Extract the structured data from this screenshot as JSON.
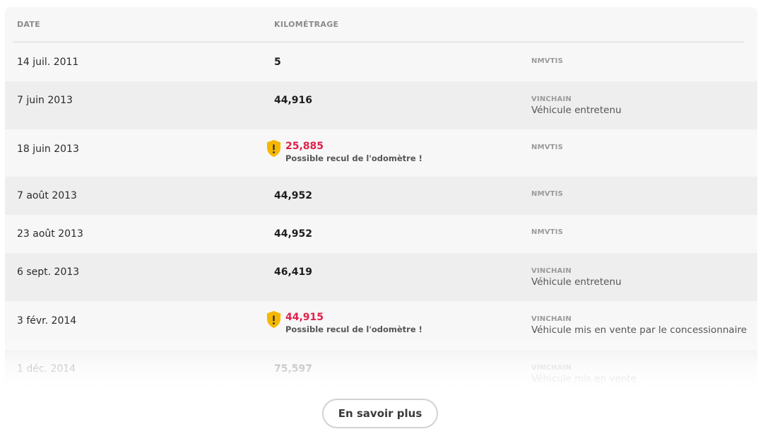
{
  "table": {
    "headers": {
      "date": "DATE",
      "mileage": "KILOMÉTRAGE"
    },
    "rows": [
      {
        "date": "14 juil. 2011",
        "mileage": "5",
        "source": "NMVTIS",
        "note": ""
      },
      {
        "date": "7 juin 2013",
        "mileage": "44,916",
        "source": "VINCHAIN",
        "note": "Véhicule entretenu"
      },
      {
        "date": "18 juin 2013",
        "mileage": "25,885",
        "warning": "Possible recul de l'odomètre !",
        "source": "NMVTIS",
        "note": ""
      },
      {
        "date": "7 août 2013",
        "mileage": "44,952",
        "source": "NMVTIS",
        "note": ""
      },
      {
        "date": "23 août 2013",
        "mileage": "44,952",
        "source": "NMVTIS",
        "note": ""
      },
      {
        "date": "6 sept. 2013",
        "mileage": "46,419",
        "source": "VINCHAIN",
        "note": "Véhicule entretenu"
      },
      {
        "date": "3 févr. 2014",
        "mileage": "44,915",
        "warning": "Possible recul de l'odomètre !",
        "source": "VINCHAIN",
        "note": "Véhicule mis en vente par le concessionnaire"
      },
      {
        "date": "1 déc. 2014",
        "mileage": "75,597",
        "source": "VINCHAIN",
        "note": "Véhicule mis en vente"
      }
    ]
  },
  "icons": {
    "warning": "warning-shield-icon"
  },
  "colors": {
    "alert": "#e0204a",
    "warning_badge": "#f5b800"
  },
  "actions": {
    "more_label": "En savoir plus"
  }
}
